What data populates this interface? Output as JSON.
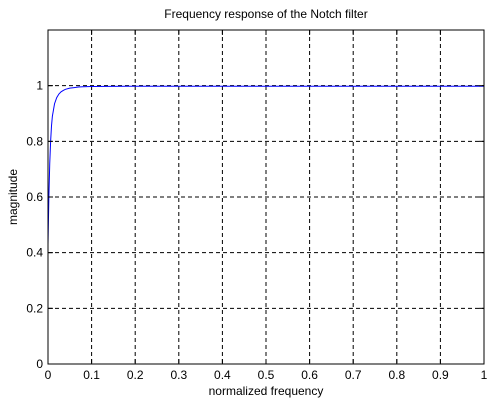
{
  "chart_data": {
    "type": "line",
    "title": "Frequency response of the Notch filter",
    "xlabel": "normalized frequency",
    "ylabel": "magnitude",
    "xlim": [
      0,
      1
    ],
    "ylim": [
      0,
      1.2
    ],
    "x_ticks": [
      "0",
      "0.1",
      "0.2",
      "0.3",
      "0.4",
      "0.5",
      "0.6",
      "0.7",
      "0.8",
      "0.9",
      "1"
    ],
    "y_ticks": [
      "0",
      "0.2",
      "0.4",
      "0.6",
      "0.8",
      "1"
    ],
    "grid": true,
    "grid_style": "dashed",
    "line_color": "#0000ff",
    "series": [
      {
        "x": [
          0,
          0.002,
          0.004,
          0.006,
          0.008,
          0.01,
          0.015,
          0.02,
          0.025,
          0.03,
          0.035,
          0.04,
          0.05,
          0.06,
          0.07,
          0.08,
          0.1,
          0.2,
          0.3,
          0.4,
          0.5,
          0.6,
          0.7,
          0.8,
          0.9,
          1
        ],
        "y": [
          0.43,
          0.6,
          0.72,
          0.8,
          0.855,
          0.89,
          0.935,
          0.957,
          0.97,
          0.978,
          0.983,
          0.987,
          0.991,
          0.993,
          0.995,
          0.996,
          0.997,
          0.998,
          0.998,
          0.998,
          0.998,
          0.998,
          0.998,
          0.998,
          0.998,
          0.998
        ]
      }
    ]
  }
}
